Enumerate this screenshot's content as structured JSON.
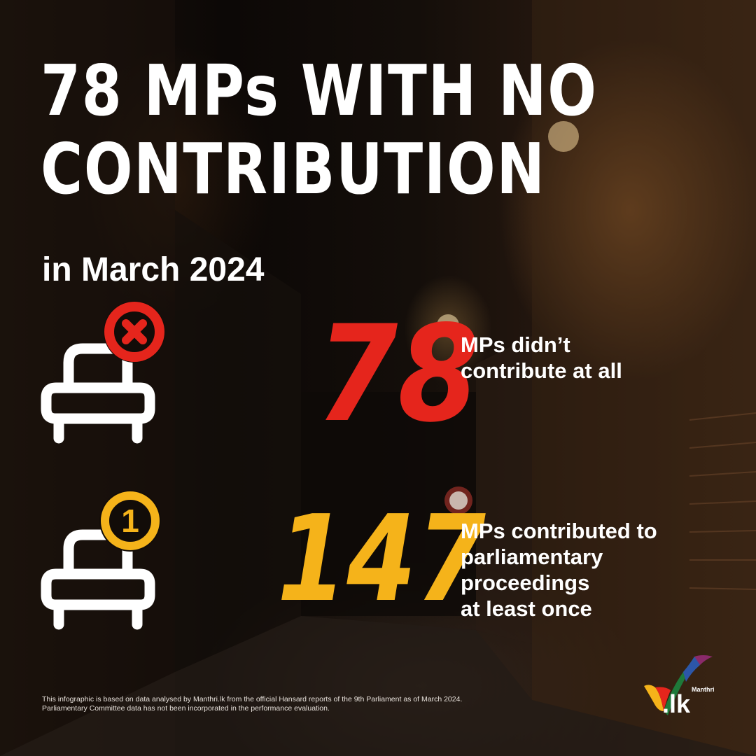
{
  "headline": {
    "line1": "78 MPs WITH NO",
    "line2": "CONTRIBUTION"
  },
  "subtitle": "in March 2024",
  "stats": [
    {
      "value": "78",
      "text": "MPs didn’t\ncontribute at all",
      "color": "#e5251c",
      "icon": "chair-with-x-icon"
    },
    {
      "value": "147",
      "text": "MPs contributed to\nparliamentary\nproceedings\nat least once",
      "color": "#f5b31a",
      "icon": "chair-with-one-icon",
      "badge": "1"
    }
  ],
  "footnote": {
    "line1": "This infographic is based on data analysed by Manthri.lk from the official Hansard reports of the 9th Parliament as of March 2024.",
    "line2": "Parliamentary Committee data has not been incorporated in the performance evaluation."
  },
  "logo": {
    "small": "Manthri",
    "domain": ".lk"
  }
}
